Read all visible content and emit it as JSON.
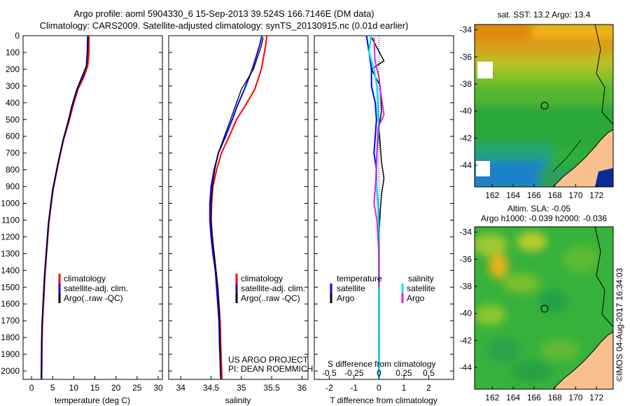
{
  "title_line1": "Argo profile: aoml 5904330_6 15-Sep-2013 39.524S 166.7146E (DM data)",
  "title_line2": "Climatology: CARS2009. Satellite-adjusted climatology: synTS_20130915.nc (0.01d earlier)",
  "depth_ticks": [
    "0",
    "100",
    "200",
    "300",
    "400",
    "500",
    "600",
    "700",
    "800",
    "900",
    "1000",
    "1100",
    "1200",
    "1300",
    "1400",
    "1500",
    "1600",
    "1700",
    "1800",
    "1900",
    "2000"
  ],
  "temperature_panel": {
    "xlabel": "temperature (deg C)",
    "xticks": [
      "0",
      "5",
      "10",
      "15",
      "20",
      "25",
      "30"
    ],
    "legend": [
      "climatology",
      "satellite-adj. clim.",
      "Argo(..raw -QC)"
    ]
  },
  "salinity_panel": {
    "xlabel": "salinity",
    "xticks": [
      "34",
      "34.5",
      "35",
      "35.5",
      "36"
    ],
    "legend": [
      "climatology",
      "satellite-adj. clim.",
      "Argo(..raw -QC)"
    ],
    "credit1": "US ARGO PROJECT",
    "credit2": "PI: DEAN ROEMMICH"
  },
  "diff_panel": {
    "xlabel": "T difference from climatology",
    "top_label": "S difference from climatology",
    "xticks": [
      "-2",
      "-1",
      "0",
      "1",
      "2"
    ],
    "top_ticks": [
      "-0.5",
      "-0.25",
      "0",
      "0.25",
      "0.5"
    ],
    "legend_temp_title": "temperature",
    "legend_sal_title": "salinity",
    "legend_temp": [
      "satellite",
      "Argo"
    ],
    "legend_sal": [
      "satellite",
      "Argo"
    ]
  },
  "sst_map": {
    "title": "sat. SST: 13.2 Argo: 13.4",
    "xticks": [
      "162",
      "164",
      "166",
      "168",
      "170",
      "172"
    ],
    "yticks": [
      "-34",
      "-36",
      "-38",
      "-40",
      "-42",
      "-44"
    ]
  },
  "sla_map": {
    "title1": "Altim. SLA: -0.05",
    "title2": "Argo h1000: -0.039 h2000: -0.036",
    "xticks": [
      "162",
      "164",
      "166",
      "168",
      "170",
      "172"
    ],
    "yticks": [
      "-34",
      "-36",
      "-38",
      "-40",
      "-42",
      "-44"
    ]
  },
  "stamp": "©IMOS 04-Aug-2017 16:34:03",
  "colors": {
    "climatology": "#ff0000",
    "satellite": "#0000ff",
    "argo": "#000000",
    "sal_sat": "#00e5ff",
    "sal_argo": "#e020e0",
    "land": "#f7c08e"
  },
  "chart_data": [
    {
      "type": "line",
      "xlabel": "temperature (deg C)",
      "ylabel": "",
      "xlim": [
        -2,
        31
      ],
      "ylim": [
        2050,
        0
      ],
      "series": [
        {
          "name": "climatology",
          "x": [
            13.6,
            13.6,
            13.3,
            12.5,
            11.0,
            9.8,
            8.8,
            7.6,
            6.7,
            5.9,
            5.1,
            4.6,
            4.1,
            3.8,
            3.5,
            3.2,
            3.0,
            2.8,
            2.6,
            2.5,
            2.4
          ],
          "y": [
            0,
            100,
            180,
            240,
            320,
            420,
            520,
            620,
            720,
            820,
            920,
            1020,
            1120,
            1220,
            1320,
            1420,
            1520,
            1620,
            1720,
            1820,
            2050
          ]
        },
        {
          "name": "satellite-adj. clim.",
          "x": [
            13.3,
            13.2,
            13.0,
            12.2,
            10.8,
            9.6,
            8.6,
            7.5,
            6.6,
            5.8,
            5.0,
            4.5,
            4.0,
            3.7,
            3.4,
            3.1,
            2.9,
            2.7,
            2.5,
            2.4,
            2.3
          ],
          "y": [
            0,
            100,
            180,
            240,
            320,
            420,
            520,
            620,
            720,
            820,
            920,
            1020,
            1120,
            1220,
            1320,
            1420,
            1520,
            1620,
            1720,
            1820,
            2050
          ]
        },
        {
          "name": "Argo(..raw -QC)",
          "x": [
            13.4,
            13.3,
            13.0,
            12.0,
            10.7,
            9.5,
            8.6,
            7.5,
            6.6,
            5.8,
            5.0,
            4.5,
            4.0,
            3.7,
            3.4,
            3.1,
            2.9,
            2.7,
            2.5,
            2.4
          ],
          "y": [
            10,
            100,
            180,
            240,
            320,
            420,
            520,
            620,
            720,
            820,
            920,
            1020,
            1120,
            1220,
            1320,
            1420,
            1520,
            1620,
            1720,
            2040
          ]
        }
      ]
    },
    {
      "type": "line",
      "xlabel": "salinity",
      "ylabel": "",
      "xlim": [
        33.8,
        36.1
      ],
      "ylim": [
        2050,
        0
      ],
      "series": [
        {
          "name": "climatology",
          "x": [
            35.42,
            35.4,
            35.33,
            35.22,
            35.06,
            34.92,
            34.8,
            34.67,
            34.59,
            34.53,
            34.51,
            34.5,
            34.52,
            34.55,
            34.58,
            34.61,
            34.63,
            34.65,
            34.66,
            34.68
          ],
          "y": [
            0,
            60,
            200,
            320,
            420,
            500,
            600,
            700,
            800,
            900,
            1000,
            1100,
            1200,
            1300,
            1400,
            1500,
            1600,
            1700,
            1850,
            2050
          ]
        },
        {
          "name": "satellite-adj. clim.",
          "x": [
            35.34,
            35.3,
            35.18,
            35.05,
            34.93,
            34.85,
            34.74,
            34.62,
            34.55,
            34.5,
            34.48,
            34.48,
            34.5,
            34.53,
            34.57,
            34.59,
            34.61,
            34.63,
            34.64,
            34.66
          ],
          "y": [
            0,
            60,
            200,
            320,
            420,
            500,
            600,
            700,
            800,
            900,
            1000,
            1100,
            1200,
            1300,
            1400,
            1500,
            1600,
            1700,
            1850,
            2050
          ]
        },
        {
          "name": "Argo(..raw -QC)",
          "x": [
            35.36,
            35.33,
            35.2,
            35.0,
            34.9,
            34.82,
            34.72,
            34.62,
            34.56,
            34.52,
            34.5,
            34.5,
            34.52,
            34.55,
            34.58,
            34.61,
            34.63,
            34.64,
            34.66
          ],
          "y": [
            10,
            60,
            200,
            320,
            420,
            500,
            600,
            700,
            800,
            900,
            1000,
            1100,
            1200,
            1300,
            1400,
            1500,
            1600,
            1700,
            2040
          ]
        }
      ]
    },
    {
      "type": "line",
      "xlabel": "T difference from climatology",
      "ylabel": "",
      "xlim": [
        -2.6,
        3.0
      ],
      "ylim": [
        2050,
        0
      ],
      "series": [
        {
          "name": "satellite",
          "x": [
            -0.5,
            -0.4,
            -0.3,
            -0.3,
            -0.15,
            -0.1,
            -0.15,
            -0.2,
            -0.1,
            -0.1,
            -0.05,
            0.0,
            0.0,
            0.0,
            0.0,
            0.0,
            0.0
          ],
          "y": [
            0,
            100,
            200,
            300,
            400,
            500,
            600,
            700,
            800,
            900,
            1000,
            1100,
            1300,
            1500,
            1700,
            1900,
            2050
          ]
        },
        {
          "name": "Argo",
          "x": [
            -0.3,
            0.2,
            -0.3,
            0.05,
            0.1,
            0.0,
            0.05,
            0.1,
            0.2,
            0.1,
            0.05,
            0.0,
            0.0,
            0.0,
            0.0
          ],
          "y": [
            10,
            150,
            200,
            300,
            450,
            550,
            650,
            750,
            850,
            950,
            1050,
            1200,
            1500,
            1800,
            2040
          ]
        }
      ]
    },
    {
      "type": "line",
      "xlabel": "",
      "top_label": "S difference from climatology",
      "xlim": [
        -0.65,
        0.75
      ],
      "ylim": [
        2050,
        0
      ],
      "series": [
        {
          "name": "satellite",
          "x": [
            -0.08,
            -0.1,
            -0.05,
            -0.02,
            -0.01,
            0.0,
            -0.02,
            -0.03,
            -0.01,
            0.0,
            0.0,
            0.0,
            0.0,
            0.0
          ],
          "y": [
            0,
            100,
            200,
            300,
            450,
            550,
            700,
            850,
            1000,
            1150,
            1400,
            1700,
            1900,
            2050
          ]
        },
        {
          "name": "Argo",
          "x": [
            -0.05,
            -0.04,
            0.0,
            0.02,
            0.05,
            -0.01,
            -0.02,
            -0.03,
            -0.05,
            -0.02,
            0.0,
            0.0
          ],
          "y": [
            10,
            150,
            250,
            350,
            470,
            550,
            700,
            850,
            1000,
            1100,
            1300,
            1500
          ]
        }
      ]
    }
  ]
}
